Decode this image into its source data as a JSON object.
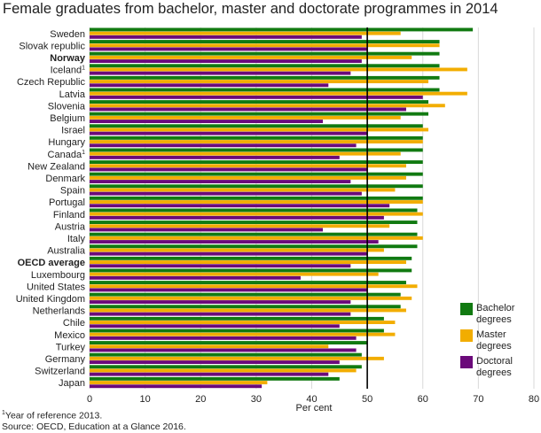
{
  "chart_data": {
    "type": "bar",
    "orientation": "horizontal",
    "title": "Female graduates from bachelor, master and doctorate programmes in 2014",
    "xlabel": "Per cent",
    "ylabel": "",
    "xlim": [
      0,
      80
    ],
    "xticks": [
      "0",
      "10",
      "20",
      "30",
      "40",
      "50",
      "60",
      "70",
      "80"
    ],
    "reference_line": 50,
    "grid": true,
    "legend_position": "bottom-right",
    "categories": [
      "Sweden",
      "Slovak republic",
      "Norway",
      "Iceland",
      "Czech Republic",
      "Latvia",
      "Slovenia",
      "Belgium",
      "Israel",
      "Hungary",
      "Canada",
      "New Zealand",
      "Denmark",
      "Spain",
      "Portugal",
      "Finland",
      "Austria",
      "Italy",
      "Australia",
      "OECD average",
      "Luxembourg",
      "United States",
      "United Kingdom",
      "Netherlands",
      "Chile",
      "Mexico",
      "Turkey",
      "Germany",
      "Switzerland",
      "Japan"
    ],
    "bold_categories": [
      "Norway",
      "OECD average"
    ],
    "footnote_marked": [
      "Iceland",
      "Canada"
    ],
    "series": [
      {
        "name": "Bachelor degrees",
        "color": "#117a11",
        "values": [
          69,
          63,
          63,
          63,
          63,
          63,
          61,
          61,
          60,
          60,
          60,
          60,
          60,
          60,
          60,
          59,
          59,
          59,
          59,
          58,
          58,
          57,
          56,
          56,
          53,
          53,
          50,
          49,
          49,
          45
        ]
      },
      {
        "name": "Master degrees",
        "color": "#f2ad00",
        "values": [
          56,
          63,
          58,
          68,
          61,
          68,
          64,
          56,
          61,
          60,
          56,
          57,
          57,
          55,
          60,
          60,
          54,
          60,
          53,
          57,
          52,
          59,
          58,
          57,
          55,
          55,
          43,
          53,
          48,
          32
        ]
      },
      {
        "name": "Doctoral degrees",
        "color": "#6b0a7a",
        "values": [
          49,
          50,
          49,
          47,
          43,
          60,
          57,
          42,
          50,
          48,
          45,
          50,
          47,
          49,
          54,
          53,
          42,
          52,
          50,
          47,
          38,
          50,
          47,
          47,
          45,
          48,
          48,
          45,
          43,
          31
        ]
      }
    ]
  },
  "footnotes": {
    "marker": "1",
    "reference_year": "Year of reference 2013.",
    "source": "Source: OECD, Education at a Glance 2016."
  }
}
